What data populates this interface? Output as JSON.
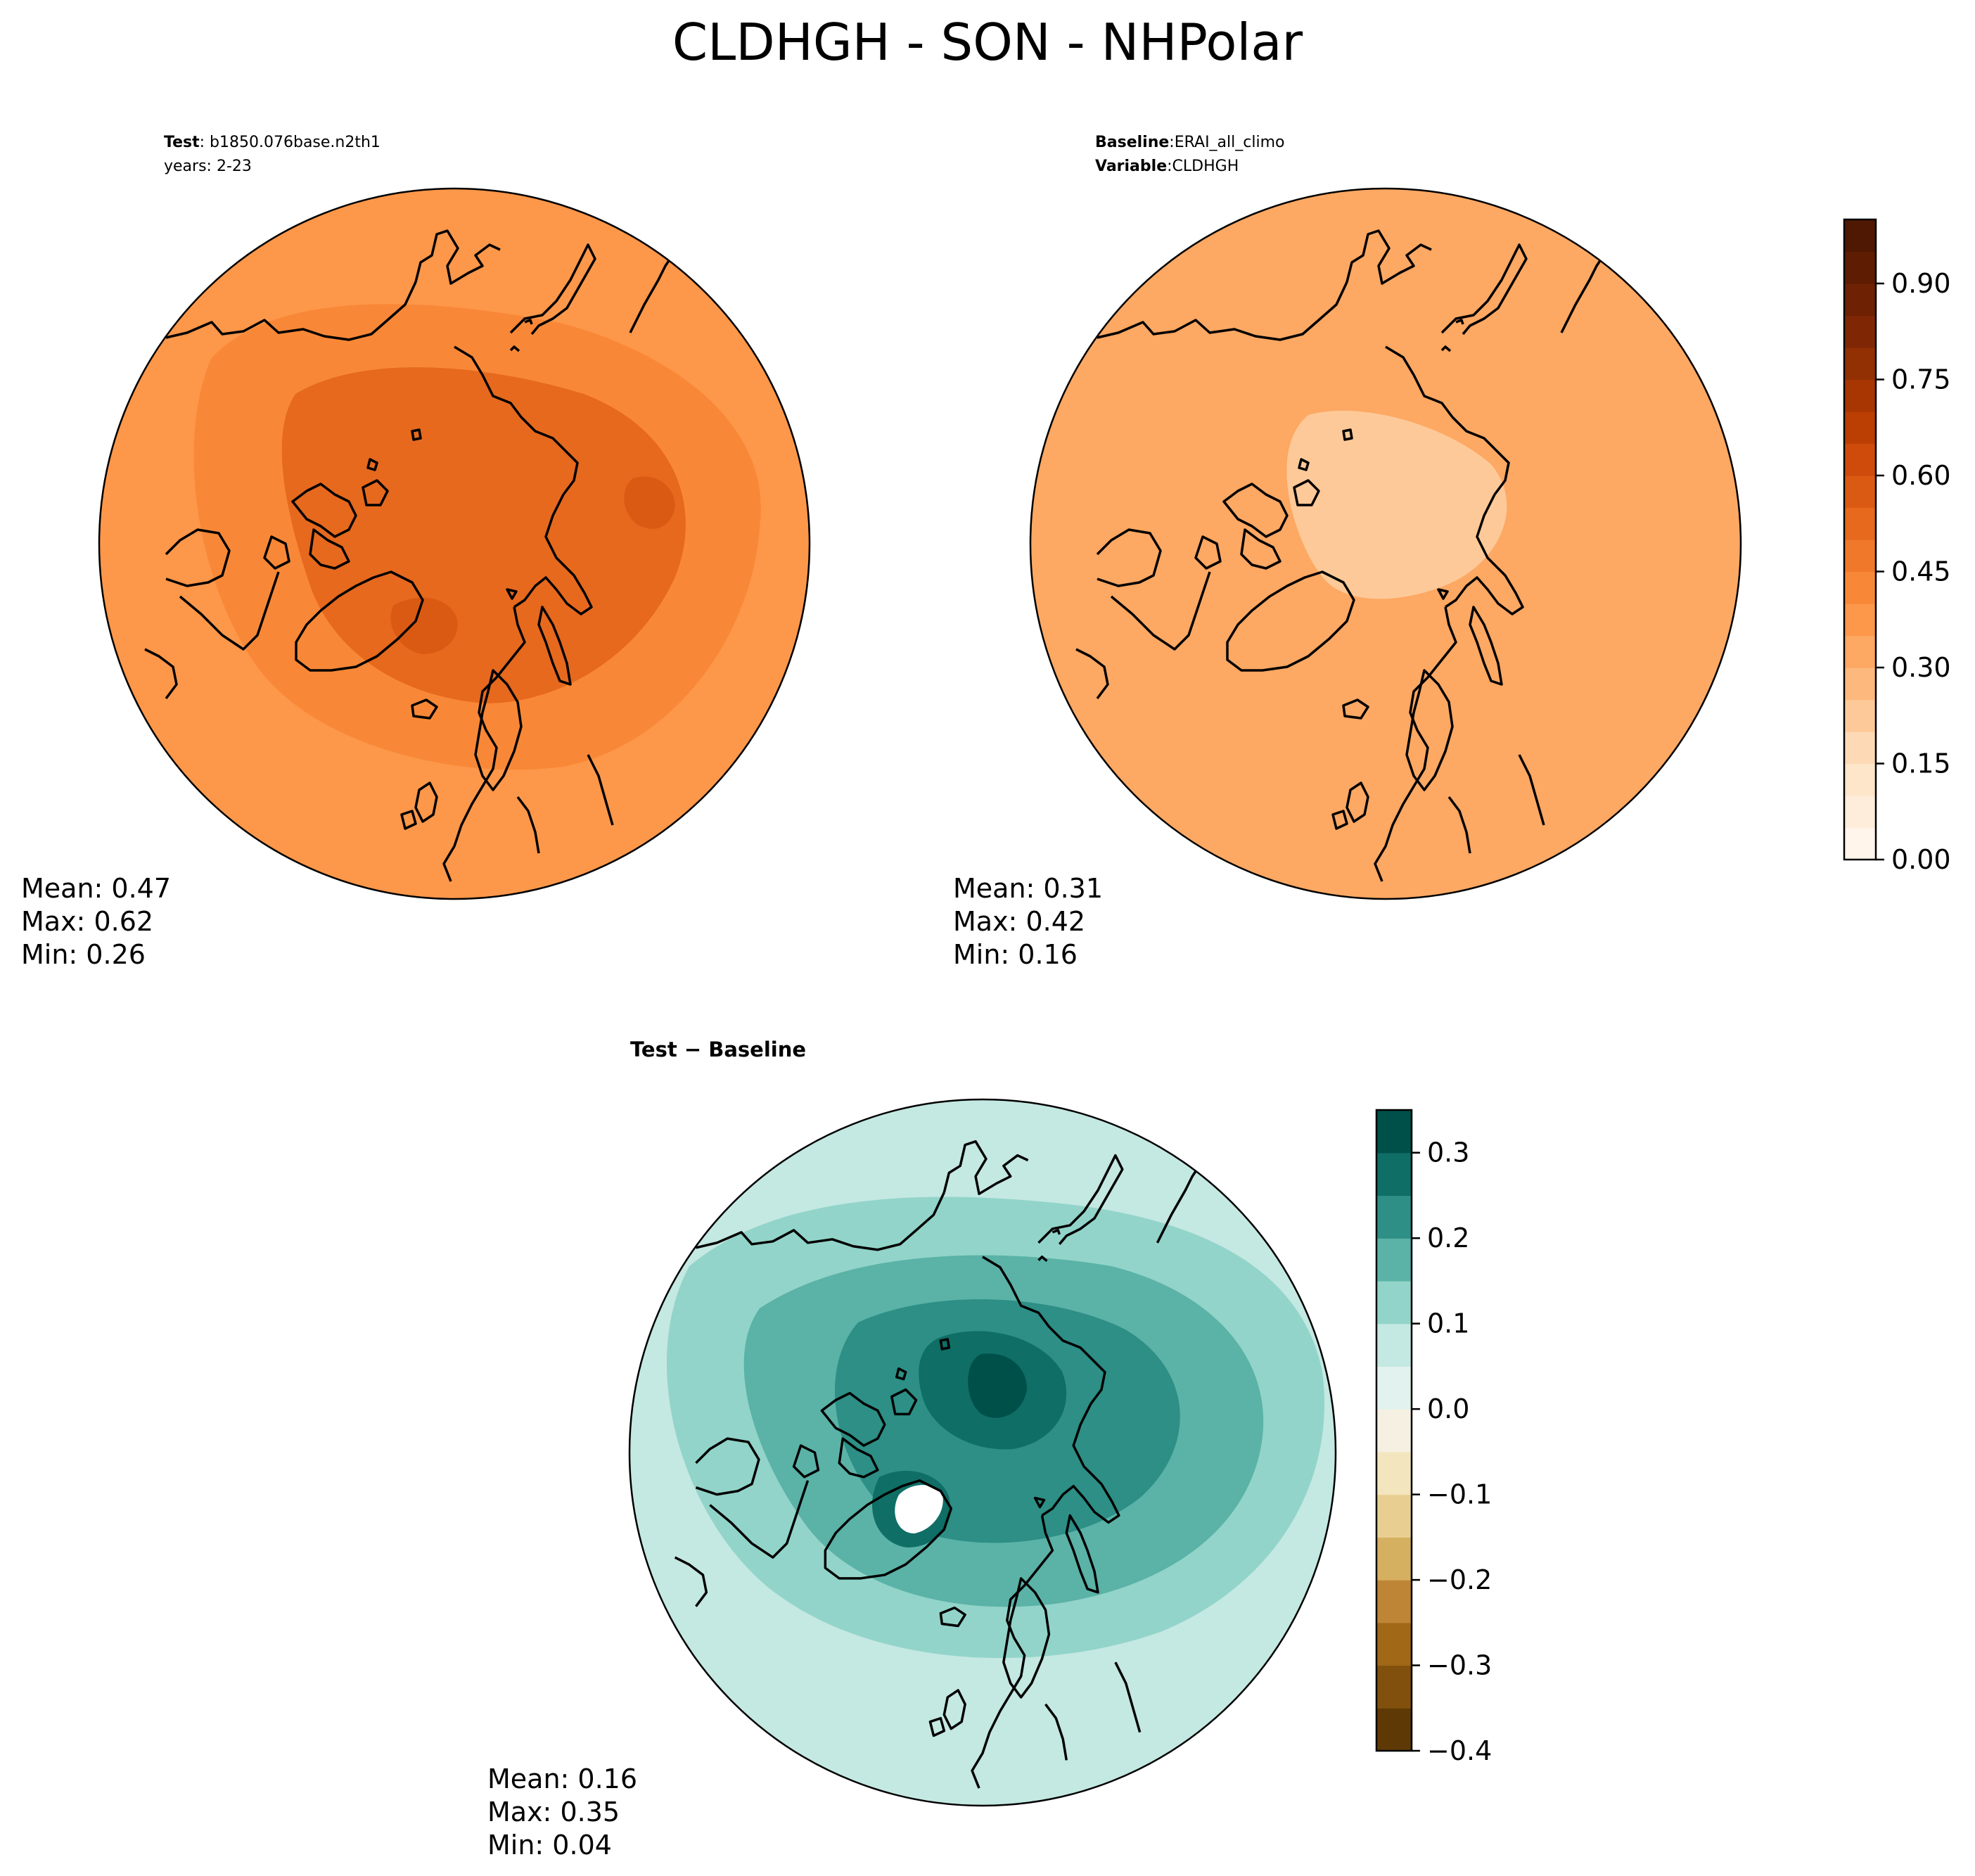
{
  "chart_data": {
    "type": "heatmap",
    "title": "CLDHGH - SON - NHPolar",
    "projection": "North Polar Stereographic",
    "panels": [
      {
        "id": "test",
        "label_bold": "Test",
        "label_sep": ":",
        "label_value": "b1850.076base.n2th1",
        "years": "years: 2-23",
        "mean": "Mean:  0.47",
        "max": "Max:  0.62",
        "min": "Min:  0.26",
        "colormap": "Oranges"
      },
      {
        "id": "baseline",
        "label_bold": "Baseline",
        "label_sep": ":",
        "label_value": "ERAI_all_climo",
        "var_bold": "Variable",
        "var_value": "CLDHGH",
        "mean": "Mean:  0.31",
        "max": "Max:  0.42",
        "min": "Min:  0.16",
        "colormap": "Oranges"
      },
      {
        "id": "diff",
        "title": "Test − Baseline",
        "mean": "Mean:  0.16",
        "max": "Max:  0.35",
        "min": "Min:  0.04",
        "colormap": "BrBG"
      }
    ],
    "colorbar_main": {
      "range": [
        0.0,
        1.0
      ],
      "levels": 20,
      "ticks": [
        0.0,
        0.15,
        0.3,
        0.45,
        0.6,
        0.75,
        0.9
      ],
      "tick_labels": [
        "0.00",
        "0.15",
        "0.30",
        "0.45",
        "0.60",
        "0.75",
        "0.90"
      ],
      "colors": [
        "#fff5eb",
        "#feeddb",
        "#fee6cb",
        "#fdd9b5",
        "#fdc998",
        "#fdb97d",
        "#fda863",
        "#fd974a",
        "#f88837",
        "#f0782b",
        "#e6691e",
        "#db5a13",
        "#ce4b0b",
        "#bb3f03",
        "#a83603",
        "#923004",
        "#7f2704",
        "#6e2203",
        "#5e1d02",
        "#4e1802"
      ]
    },
    "colorbar_diff": {
      "range": [
        -0.4,
        0.35
      ],
      "levels": 15,
      "ticks": [
        -0.4,
        -0.3,
        -0.2,
        -0.1,
        0.0,
        0.1,
        0.2,
        0.3
      ],
      "tick_labels": [
        "−0.4",
        "−0.3",
        "−0.2",
        "−0.1",
        "0.0",
        "0.1",
        "0.2",
        "0.3"
      ],
      "colors": [
        "#5f3905",
        "#80500c",
        "#a06817",
        "#bd8535",
        "#d5b060",
        "#e8cf91",
        "#f3e5bd",
        "#f5f0e2",
        "#e2f2ee",
        "#c4e8e2",
        "#92d4c9",
        "#5bb2a7",
        "#2d8f86",
        "#0f6e66",
        "#00504a"
      ]
    },
    "level_values": {
      "test": {
        "ocean_bg": 0.35,
        "mid": 0.42,
        "high": 0.5,
        "peak": 0.56
      },
      "baseline": {
        "bg": 0.33,
        "mid": 0.3,
        "low": 0.22
      },
      "diff": {
        "bg": 0.08,
        "mid1": 0.13,
        "mid2": 0.18,
        "high": 0.24,
        "peak": 0.3,
        "top": 0.34
      }
    }
  }
}
